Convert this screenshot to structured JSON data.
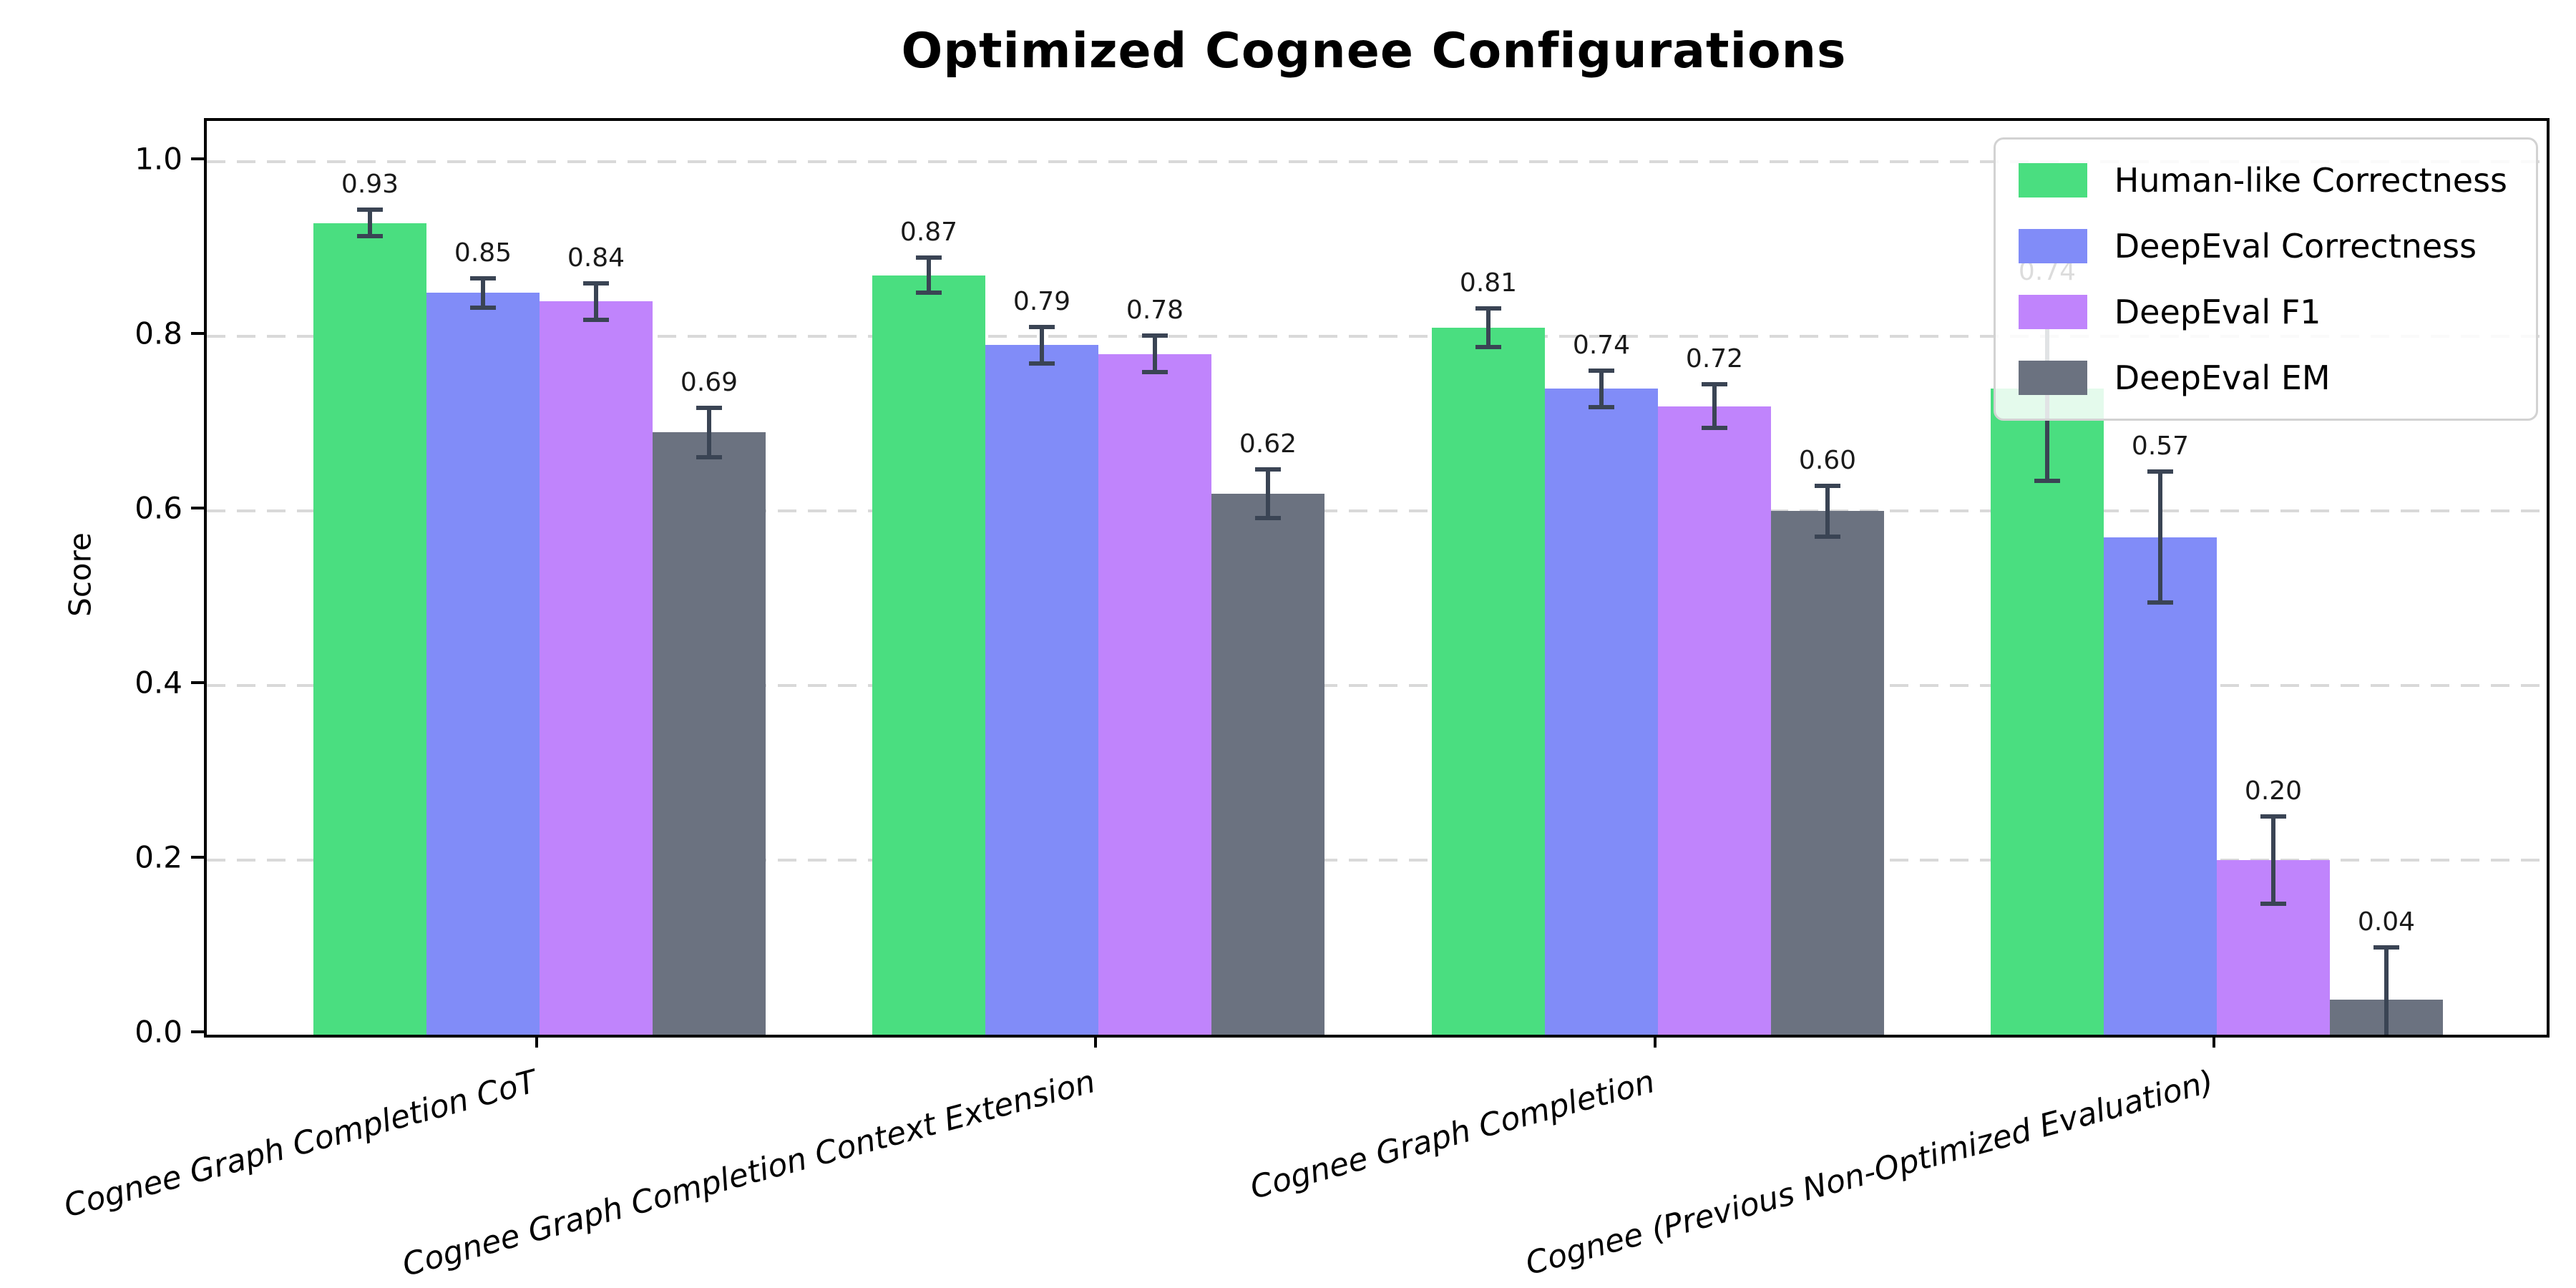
{
  "page": {
    "background_color": "#ffffff",
    "text_color": "#000000"
  },
  "chart_data": {
    "type": "bar",
    "title": "Optimized Cognee Configurations",
    "xlabel": "",
    "ylabel": "Score",
    "ylim": [
      0,
      1.047
    ],
    "yticks": [
      0.0,
      0.2,
      0.4,
      0.6,
      0.8,
      1.0
    ],
    "ytick_labels": [
      "0.0",
      "0.2",
      "0.4",
      "0.6",
      "0.8",
      "1.0"
    ],
    "grid": "horizontal dashed at yticks, drawn below bars",
    "grid_color": "#d9d9d9",
    "axis_color": "#000000",
    "error_bar_color": "#3a4454",
    "value_label_color": "#1a1a1a",
    "value_label_decimals": 2,
    "legend_position": "upper right",
    "categories": [
      "Cognee Graph Completion CoT",
      "Cognee Graph Completion Context Extension",
      "Cognee Graph Completion",
      "Cognee (Previous Non-Optimized Evaluation)"
    ],
    "series": [
      {
        "name": "Human-like Correctness",
        "color": "#4ade80",
        "values": [
          0.93,
          0.87,
          0.81,
          0.74
        ],
        "errors": [
          0.015,
          0.02,
          0.022,
          0.105
        ]
      },
      {
        "name": "DeepEval Correctness",
        "color": "#818cf8",
        "values": [
          0.85,
          0.79,
          0.74,
          0.57
        ],
        "errors": [
          0.017,
          0.021,
          0.021,
          0.075
        ]
      },
      {
        "name": "DeepEval F1",
        "color": "#c084fc",
        "values": [
          0.84,
          0.78,
          0.72,
          0.2
        ],
        "errors": [
          0.021,
          0.021,
          0.025,
          0.05
        ]
      },
      {
        "name": "DeepEval EM",
        "color": "#6b7280",
        "values": [
          0.69,
          0.62,
          0.6,
          0.04
        ],
        "errors": [
          0.028,
          0.028,
          0.029,
          0.06
        ]
      }
    ]
  }
}
